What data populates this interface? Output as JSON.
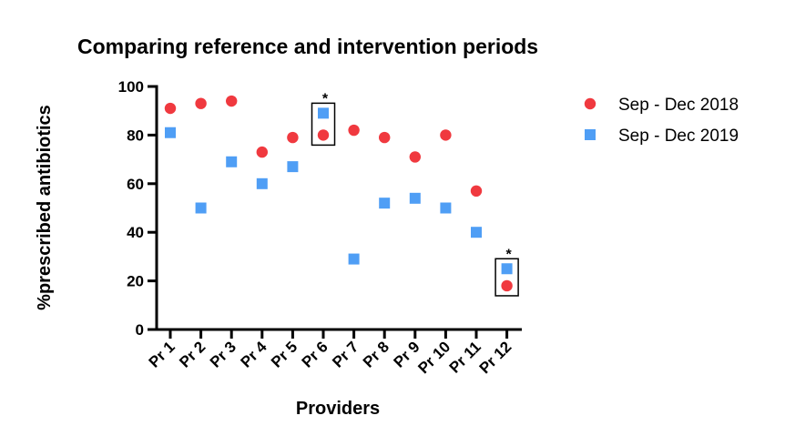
{
  "chart_data": {
    "type": "scatter",
    "title": "Comparing reference and intervention periods",
    "xlabel": "Providers",
    "ylabel": "%prescribed antibiotics",
    "categories": [
      "Pr 1",
      "Pr 2",
      "Pr 3",
      "Pr 4",
      "Pr 5",
      "Pr 6",
      "Pr 7",
      "Pr 8",
      "Pr 9",
      "Pr 10",
      "Pr 11",
      "Pr 12"
    ],
    "ylim": [
      0,
      100
    ],
    "yticks": [
      0,
      20,
      40,
      60,
      80,
      100
    ],
    "ytick_labels": [
      "0",
      "20",
      "40",
      "60",
      "80",
      "100"
    ],
    "grid": false,
    "legend_position": "right",
    "series": [
      {
        "name": "Sep - Dec 2018",
        "marker": "circle",
        "color": "#f0393f",
        "values": [
          91,
          93,
          94,
          73,
          79,
          80,
          82,
          79,
          71,
          80,
          57,
          18
        ]
      },
      {
        "name": "Sep - Dec 2019",
        "marker": "square",
        "color": "#4f9ef5",
        "values": [
          81,
          50,
          69,
          60,
          67,
          89,
          29,
          52,
          54,
          50,
          40,
          25
        ]
      }
    ],
    "annotations": [
      {
        "category": "Pr 6",
        "text": "*",
        "boxed": true
      },
      {
        "category": "Pr 12",
        "text": "*",
        "boxed": true
      }
    ]
  }
}
